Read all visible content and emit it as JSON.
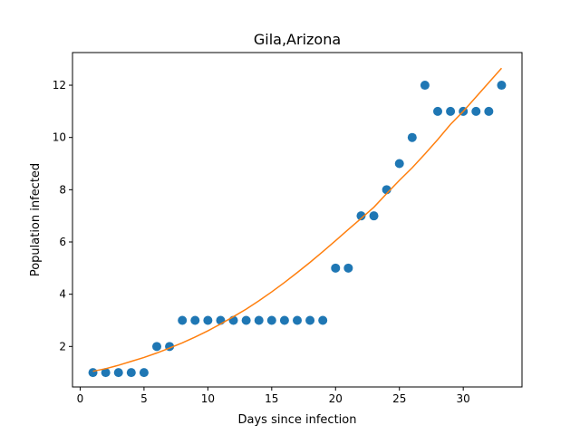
{
  "chart_data": {
    "type": "scatter",
    "title": "Gila,Arizona",
    "xlabel": "Days since infection",
    "ylabel": "Population infected",
    "xlim": [
      -0.6,
      34.6
    ],
    "ylim": [
      0.45,
      13.25
    ],
    "xticks": [
      0,
      5,
      10,
      15,
      20,
      25,
      30
    ],
    "yticks": [
      2,
      4,
      6,
      8,
      10,
      12
    ],
    "grid": false,
    "legend": "none",
    "colors": {
      "points": "#1f77b4",
      "fit": "#ff7f0e"
    },
    "series": [
      {
        "kind": "scatter",
        "x": [
          1,
          2,
          3,
          4,
          5,
          6,
          7,
          8,
          9,
          10,
          11,
          12,
          13,
          14,
          15,
          16,
          17,
          18,
          19,
          20,
          21,
          22,
          23,
          24,
          25,
          26,
          27,
          28,
          29,
          30,
          31,
          32,
          33
        ],
        "y": [
          1,
          1,
          1,
          1,
          1,
          2,
          2,
          3,
          3,
          3,
          3,
          3,
          3,
          3,
          3,
          3,
          3,
          3,
          3,
          5,
          5,
          7,
          7,
          8,
          9,
          10,
          12,
          11,
          11,
          11,
          11,
          11,
          12
        ]
      },
      {
        "kind": "line",
        "x": [
          1,
          2,
          3,
          4,
          5,
          6,
          7,
          8,
          9,
          10,
          11,
          12,
          13,
          14,
          15,
          16,
          17,
          18,
          19,
          20,
          21,
          22,
          23,
          24,
          25,
          26,
          27,
          28,
          29,
          30,
          31,
          32,
          33
        ],
        "y": [
          1.05,
          1.15,
          1.28,
          1.43,
          1.58,
          1.75,
          1.94,
          2.14,
          2.36,
          2.6,
          2.86,
          3.14,
          3.43,
          3.75,
          4.09,
          4.45,
          4.83,
          5.22,
          5.63,
          6.05,
          6.48,
          6.9,
          7.33,
          7.85,
          8.36,
          8.84,
          9.37,
          9.92,
          10.5,
          11.0,
          11.55,
          12.1,
          12.65
        ]
      }
    ]
  }
}
